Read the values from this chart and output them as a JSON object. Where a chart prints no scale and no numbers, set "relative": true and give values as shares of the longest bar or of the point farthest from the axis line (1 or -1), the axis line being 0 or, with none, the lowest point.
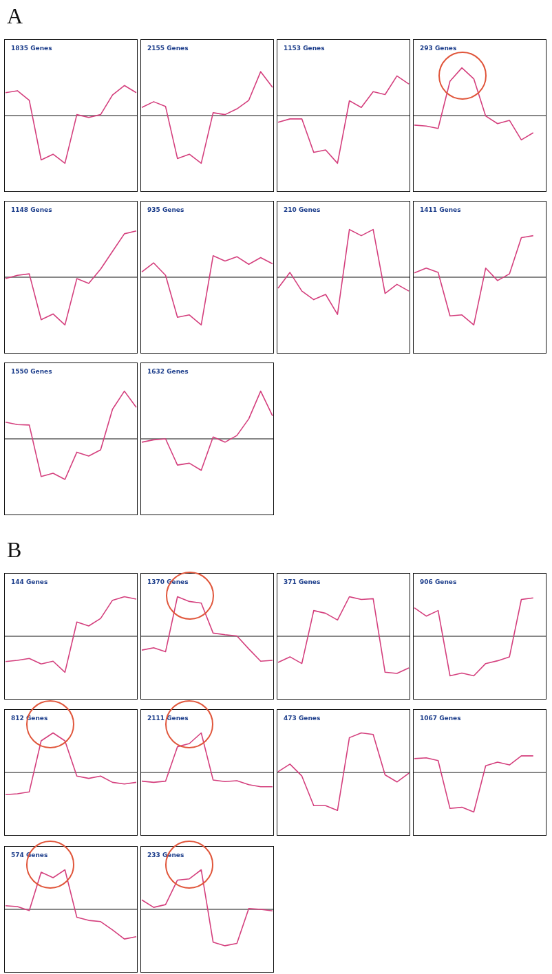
{
  "chart_data": [
    {
      "type": "line",
      "annotations": [
        "A"
      ],
      "title": "1835 Genes",
      "categories": [
        null,
        null,
        null,
        null,
        null,
        null,
        null,
        null,
        null,
        null,
        null,
        null
      ],
      "values": [
        0.48,
        0.52,
        0.32,
        -0.93,
        -0.81,
        -1,
        0.02,
        -0.04,
        0.02,
        0.43,
        0.63,
        0.48
      ],
      "color": "#d43f7d",
      "relative": true,
      "tick_labels": false
    },
    {
      "type": "line",
      "title": "2155 Genes",
      "categories": [
        null,
        null,
        null,
        null,
        null,
        null,
        null,
        null,
        null,
        null,
        null,
        null
      ],
      "values": [
        0.17,
        0.29,
        0.19,
        -0.9,
        -0.81,
        -1,
        0.06,
        0.02,
        0.14,
        0.32,
        0.92,
        0.59
      ],
      "color": "#d43f7d",
      "relative": true,
      "tick_labels": false
    },
    {
      "type": "line",
      "title": "1153 Genes",
      "categories": [
        null,
        null,
        null,
        null,
        null,
        null,
        null,
        null,
        null,
        null,
        null,
        null
      ],
      "values": [
        -0.14,
        -0.07,
        -0.07,
        -0.77,
        -0.72,
        -1,
        0.31,
        0.17,
        0.5,
        0.44,
        0.83,
        0.66
      ],
      "color": "#d43f7d",
      "relative": true,
      "tick_labels": false
    },
    {
      "type": "line",
      "title": "293 Genes",
      "categories": [
        null,
        null,
        null,
        null,
        null,
        null,
        null,
        null,
        null,
        null,
        null,
        null
      ],
      "values": [
        -0.2,
        -0.22,
        -0.27,
        0.72,
        1,
        0.77,
        -0.01,
        -0.17,
        -0.1,
        -0.51,
        -0.36,
        null
      ],
      "color": "#d43f7d",
      "relative": true,
      "tick_labels": false
    },
    {
      "type": "line",
      "title": "1148 Genes",
      "categories": [
        null,
        null,
        null,
        null,
        null,
        null,
        null,
        null,
        null,
        null,
        null,
        null
      ],
      "values": [
        -0.03,
        0.04,
        0.07,
        -0.89,
        -0.77,
        -1,
        -0.03,
        -0.13,
        0.17,
        0.54,
        0.91,
        0.97
      ],
      "color": "#d43f7d",
      "relative": true,
      "tick_labels": false
    },
    {
      "type": "line",
      "title": "935 Genes",
      "categories": [
        null,
        null,
        null,
        null,
        null,
        null,
        null,
        null,
        null,
        null,
        null,
        null
      ],
      "values": [
        0.11,
        0.3,
        0.04,
        -0.84,
        -0.79,
        -1,
        0.45,
        0.34,
        0.43,
        0.27,
        0.41,
        0.28
      ],
      "color": "#d43f7d",
      "relative": true,
      "tick_labels": false
    },
    {
      "type": "line",
      "title": "210 Genes",
      "categories": [
        null,
        null,
        null,
        null,
        null,
        null,
        null,
        null,
        null,
        null,
        null,
        null
      ],
      "values": [
        -0.23,
        0.1,
        -0.29,
        -0.47,
        -0.36,
        -0.78,
        1,
        0.87,
        1,
        -0.34,
        -0.15,
        -0.29
      ],
      "color": "#d43f7d",
      "relative": true,
      "tick_labels": false
    },
    {
      "type": "line",
      "title": "1411 Genes",
      "categories": [
        null,
        null,
        null,
        null,
        null,
        null,
        null,
        null,
        null,
        null,
        null,
        null
      ],
      "values": [
        0.09,
        0.19,
        0.1,
        -0.81,
        -0.79,
        -1,
        0.19,
        -0.07,
        0.07,
        0.83,
        0.87,
        null
      ],
      "color": "#d43f7d",
      "relative": true,
      "tick_labels": false
    },
    {
      "type": "line",
      "title": "1550 Genes",
      "categories": [
        null,
        null,
        null,
        null,
        null,
        null,
        null,
        null,
        null,
        null,
        null,
        null
      ],
      "values": [
        0.35,
        0.3,
        0.29,
        -0.79,
        -0.72,
        -0.85,
        -0.28,
        -0.36,
        -0.23,
        0.62,
        1,
        0.66
      ],
      "color": "#d43f7d",
      "relative": true,
      "tick_labels": false
    },
    {
      "type": "line",
      "title": "1632 Genes",
      "categories": [
        null,
        null,
        null,
        null,
        null,
        null,
        null,
        null,
        null,
        null,
        null,
        null
      ],
      "values": [
        -0.07,
        -0.02,
        0,
        -0.55,
        -0.51,
        -0.66,
        0.04,
        -0.07,
        0.07,
        0.42,
        1,
        0.48
      ],
      "color": "#d43f7d",
      "relative": true,
      "tick_labels": false
    },
    {
      "type": "line",
      "annotations": [
        "B"
      ],
      "title": "144 Genes",
      "categories": [
        null,
        null,
        null,
        null,
        null,
        null,
        null,
        null,
        null,
        null,
        null,
        null
      ],
      "values": [
        -0.64,
        -0.61,
        -0.56,
        -0.7,
        -0.63,
        -0.91,
        0.36,
        0.26,
        0.45,
        0.91,
        1,
        0.94
      ],
      "color": "#d43f7d",
      "relative": true,
      "tick_labels": false
    },
    {
      "type": "line",
      "title": "1370 Genes",
      "categories": [
        null,
        null,
        null,
        null,
        null,
        null,
        null,
        null,
        null,
        null,
        null,
        null
      ],
      "values": [
        -0.35,
        -0.29,
        -0.39,
        1,
        0.88,
        0.84,
        0.08,
        0.04,
        0.01,
        -0.32,
        -0.63,
        -0.61
      ],
      "color": "#d43f7d",
      "relative": true,
      "tick_labels": false
    },
    {
      "type": "line",
      "title": "371 Genes",
      "categories": [
        null,
        null,
        null,
        null,
        null,
        null,
        null,
        null,
        null,
        null,
        null,
        null
      ],
      "values": [
        -0.66,
        -0.52,
        -0.69,
        0.65,
        0.58,
        0.41,
        1,
        0.93,
        0.95,
        -0.91,
        -0.94,
        -0.8
      ],
      "color": "#d43f7d",
      "relative": true,
      "tick_labels": false
    },
    {
      "type": "line",
      "title": "906 Genes",
      "categories": [
        null,
        null,
        null,
        null,
        null,
        null,
        null,
        null,
        null,
        null,
        null,
        null
      ],
      "values": [
        0.72,
        0.51,
        0.65,
        -1,
        -0.93,
        -1,
        -0.69,
        -0.62,
        -0.52,
        0.93,
        0.97,
        null
      ],
      "color": "#d43f7d",
      "relative": true,
      "tick_labels": false
    },
    {
      "type": "line",
      "title": "812 Genes",
      "categories": [
        null,
        null,
        null,
        null,
        null,
        null,
        null,
        null,
        null,
        null,
        null,
        null
      ],
      "values": [
        -0.56,
        -0.54,
        -0.49,
        0.8,
        1,
        0.8,
        -0.09,
        -0.15,
        -0.09,
        -0.25,
        -0.29,
        -0.25
      ],
      "color": "#d43f7d",
      "relative": true,
      "tick_labels": false
    },
    {
      "type": "line",
      "title": "2111 Genes",
      "categories": [
        null,
        null,
        null,
        null,
        null,
        null,
        null,
        null,
        null,
        null,
        null,
        null
      ],
      "values": [
        -0.22,
        -0.25,
        -0.22,
        0.65,
        0.73,
        1,
        -0.19,
        -0.23,
        -0.21,
        -0.31,
        -0.36,
        -0.36
      ],
      "color": "#d43f7d",
      "relative": true,
      "tick_labels": false
    },
    {
      "type": "line",
      "title": "473 Genes",
      "categories": [
        null,
        null,
        null,
        null,
        null,
        null,
        null,
        null,
        null,
        null,
        null,
        null
      ],
      "values": [
        0.02,
        0.21,
        -0.09,
        -0.84,
        -0.84,
        -0.96,
        0.88,
        1,
        0.96,
        -0.06,
        -0.24,
        -0.02
      ],
      "color": "#d43f7d",
      "relative": true,
      "tick_labels": false
    },
    {
      "type": "line",
      "title": "1067 Genes",
      "categories": [
        null,
        null,
        null,
        null,
        null,
        null,
        null,
        null,
        null,
        null,
        null,
        null
      ],
      "values": [
        0.35,
        0.37,
        0.3,
        -0.91,
        -0.88,
        -1,
        0.17,
        0.26,
        0.19,
        0.42,
        0.42,
        null
      ],
      "color": "#d43f7d",
      "relative": true,
      "tick_labels": false
    },
    {
      "type": "line",
      "title": "574 Genes",
      "categories": [
        null,
        null,
        null,
        null,
        null,
        null,
        null,
        null,
        null,
        null,
        null,
        null
      ],
      "values": [
        0.09,
        0.07,
        -0.03,
        0.94,
        0.8,
        1,
        -0.2,
        -0.28,
        -0.31,
        -0.52,
        -0.75,
        -0.69
      ],
      "color": "#d43f7d",
      "relative": true,
      "tick_labels": false
    },
    {
      "type": "line",
      "title": "233 Genes",
      "categories": [
        null,
        null,
        null,
        null,
        null,
        null,
        null,
        null,
        null,
        null,
        null,
        null
      ],
      "values": [
        0.24,
        0.05,
        0.12,
        0.74,
        0.77,
        1,
        -0.83,
        -0.92,
        -0.86,
        0.02,
        0,
        -0.04
      ],
      "color": "#d43f7d",
      "relative": true,
      "tick_labels": false
    }
  ]
}
